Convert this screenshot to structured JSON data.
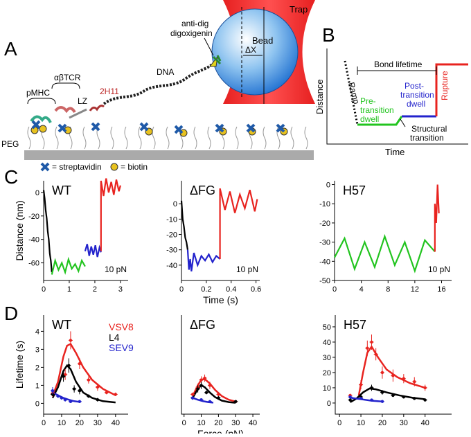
{
  "panel_labels": [
    "A",
    "B",
    "C",
    "D"
  ],
  "diagram_a": {
    "trap": "Trap",
    "anti_dig": "anti-dig",
    "digoxigenin": "digoxigenin",
    "bead": "Bead",
    "delta_x": "ΔX",
    "dna": "DNA",
    "antibody": "2H11",
    "lz": "LZ",
    "tcr": "αβTCR",
    "pmhc": "pMHC",
    "peg": "PEG",
    "legend": [
      "= streptavidin",
      "= biotin"
    ]
  },
  "schematic_b": {
    "bond_lifetime": "Bond lifetime",
    "ramp": "Ramp",
    "pre_transition": [
      "Pre-",
      "transition",
      "dwell"
    ],
    "post_transition": [
      "Post-",
      "transition",
      "dwell"
    ],
    "rupture": "Rupture",
    "structural_transition": [
      "Structural",
      "transition"
    ],
    "y_label": "Distance",
    "x_label": "Time"
  },
  "chart_data": [
    {
      "type": "line",
      "title": "WT",
      "y_label": "Distance (nm)",
      "annotation": "10 pN",
      "xlim": [
        0,
        3.3
      ],
      "ylim": [
        -75,
        10
      ],
      "xticks": [
        0,
        1,
        2,
        3
      ],
      "yticks": [
        0,
        -20,
        -40,
        -60
      ],
      "series": [
        {
          "color": "#000000",
          "x": [
            0,
            0.04,
            0.08,
            0.12,
            0.16,
            0.2,
            0.24,
            0.28,
            0.32
          ],
          "values": [
            2,
            -5,
            -15,
            -22,
            -33,
            -40,
            -52,
            -58,
            -68
          ]
        },
        {
          "color": "#22c41f",
          "x": [
            0.32,
            0.45,
            0.58,
            0.71,
            0.84,
            0.97,
            1.1,
            1.23,
            1.36,
            1.49,
            1.62
          ],
          "values": [
            -70,
            -58,
            -66,
            -60,
            -68,
            -57,
            -65,
            -61,
            -67,
            -58,
            -63
          ]
        },
        {
          "color": "#2323cc",
          "x": [
            1.62,
            1.7,
            1.78,
            1.86,
            1.94,
            2.02,
            2.1,
            2.18,
            2.24
          ],
          "values": [
            -50,
            -44,
            -54,
            -46,
            -53,
            -45,
            -55,
            -47,
            -51
          ]
        },
        {
          "color": "#e8231f",
          "x": [
            2.24,
            2.24,
            2.34,
            2.44,
            2.54,
            2.64,
            2.74,
            2.84,
            2.94,
            3.0
          ],
          "values": [
            -50,
            10,
            -3,
            12,
            0,
            9,
            -2,
            11,
            1,
            6
          ]
        }
      ]
    },
    {
      "type": "line",
      "title": "ΔFG",
      "x_label": "Time (s)",
      "annotation": "10 pN",
      "xlim": [
        0,
        0.63
      ],
      "ylim": [
        -50,
        15
      ],
      "xticks": [
        0,
        0.2,
        0.4,
        0.6
      ],
      "yticks": [
        0,
        -10,
        -20,
        -30,
        -40
      ],
      "series": [
        {
          "color": "#000000",
          "x": [
            0,
            0.01,
            0.02,
            0.03,
            0.04,
            0.05
          ],
          "values": [
            2,
            -10,
            -15,
            -22,
            -25,
            -30
          ]
        },
        {
          "color": "#2323cc",
          "x": [
            0.05,
            0.06,
            0.07,
            0.08,
            0.1,
            0.13,
            0.16,
            0.19,
            0.22,
            0.25,
            0.28,
            0.31
          ],
          "values": [
            -30,
            -43,
            -36,
            -44,
            -32,
            -40,
            -34,
            -37,
            -33,
            -38,
            -34,
            -36
          ]
        },
        {
          "color": "#e8231f",
          "x": [
            0.31,
            0.31,
            0.35,
            0.39,
            0.43,
            0.47,
            0.51,
            0.55,
            0.59,
            0.61
          ],
          "values": [
            -36,
            10,
            -4,
            8,
            -6,
            6,
            -3,
            9,
            -5,
            3
          ]
        }
      ]
    },
    {
      "type": "line",
      "title": "H57",
      "annotation": "10 pN",
      "xlim": [
        0,
        17.5
      ],
      "ylim": [
        -50,
        2
      ],
      "xticks": [
        0,
        4,
        8,
        12,
        16
      ],
      "yticks": [
        0,
        -10,
        -20,
        -30,
        -40,
        -50
      ],
      "series": [
        {
          "color": "#22c41f",
          "x": [
            0,
            1.5,
            3,
            4.5,
            6,
            7.5,
            9,
            10.5,
            12,
            13.5,
            15
          ],
          "values": [
            -38,
            -28,
            -44,
            -30,
            -43,
            -27,
            -42,
            -30,
            -45,
            -29,
            -35
          ]
        },
        {
          "color": "#e8231f",
          "x": [
            15,
            15,
            15.2,
            15.4,
            15.6
          ],
          "values": [
            -35,
            -10,
            -20,
            0,
            -15
          ]
        }
      ]
    },
    {
      "type": "scatter",
      "title": "WT",
      "y_label": "Lifetime (s)",
      "xlim": [
        0,
        47
      ],
      "ylim": [
        -0.6,
        4.9
      ],
      "xticks": [
        0,
        10,
        20,
        30,
        40
      ],
      "yticks": [
        0,
        1,
        2,
        3,
        4
      ],
      "series": [
        {
          "name": "VSV8",
          "color": "#e8231f",
          "x": [
            5,
            12,
            15,
            20,
            25,
            30,
            35,
            40
          ],
          "values": [
            0.55,
            1.6,
            3.5,
            2.2,
            1.3,
            0.9,
            0.6,
            0.5
          ],
          "errors": [
            0.2,
            0.3,
            0.5,
            0.3,
            0.2,
            0.2,
            0.1,
            0.1
          ]
        },
        {
          "name": "L4",
          "color": "#000000",
          "x": [
            5,
            11,
            14,
            17,
            20,
            25,
            30
          ],
          "values": [
            0.5,
            1.5,
            2.1,
            0.8,
            0.7,
            0.4,
            0.2
          ],
          "errors": [
            0.1,
            0.3,
            0.4,
            0.2,
            0.2,
            0.1,
            0.1
          ]
        },
        {
          "name": "SEV9",
          "color": "#2323cc",
          "x": [
            5,
            8,
            10,
            12,
            15,
            20
          ],
          "values": [
            0.7,
            0.4,
            0.3,
            0.2,
            0.1,
            0.1
          ],
          "errors": [
            0.2,
            0.1,
            0.1,
            0.1,
            0.05,
            0.05
          ]
        }
      ],
      "fits": [
        {
          "color": "#e8231f",
          "x": [
            5,
            8,
            11,
            13,
            15,
            18,
            22,
            27,
            33,
            40
          ],
          "values": [
            0.4,
            1.2,
            2.6,
            3.2,
            3.3,
            2.8,
            2.0,
            1.3,
            0.8,
            0.45
          ]
        },
        {
          "color": "#000000",
          "x": [
            5,
            8,
            11,
            13,
            15,
            18,
            22,
            27,
            33,
            40
          ],
          "values": [
            0.3,
            0.9,
            1.8,
            2.1,
            1.9,
            1.2,
            0.6,
            0.3,
            0.12,
            0.05
          ]
        },
        {
          "color": "#2323cc",
          "x": [
            5,
            8,
            11,
            14,
            17,
            20
          ],
          "values": [
            0.6,
            0.45,
            0.3,
            0.2,
            0.12,
            0.08
          ]
        }
      ]
    },
    {
      "type": "scatter",
      "title": "ΔFG",
      "x_label": "Force (pN)",
      "xlim": [
        -1.5,
        44
      ],
      "ylim": [
        -0.6,
        4.9
      ],
      "xticks": [
        0,
        10,
        20,
        30,
        40
      ],
      "series": [
        {
          "color": "#e8231f",
          "x": [
            5,
            8,
            10,
            12,
            15,
            20,
            30
          ],
          "values": [
            0.5,
            0.9,
            1.3,
            1.4,
            1.0,
            0.5,
            0.1
          ],
          "errors": [
            0.1,
            0.2,
            0.2,
            0.2,
            0.2,
            0.1,
            0.05
          ]
        },
        {
          "color": "#000000",
          "x": [
            5,
            8,
            10,
            13,
            20,
            30
          ],
          "values": [
            0.3,
            0.8,
            1.0,
            0.6,
            0.3,
            0.1
          ],
          "errors": [
            0.1,
            0.2,
            0.2,
            0.1,
            0.1,
            0.05
          ]
        },
        {
          "color": "#2323cc",
          "x": [
            5,
            10,
            15
          ],
          "values": [
            0.3,
            0.2,
            0.1
          ],
          "errors": [
            0.1,
            0.05,
            0.05
          ]
        }
      ],
      "fits": [
        {
          "color": "#e8231f",
          "x": [
            5,
            8,
            10,
            12,
            15,
            18,
            22,
            26,
            30
          ],
          "values": [
            0.4,
            1.0,
            1.3,
            1.35,
            1.1,
            0.75,
            0.4,
            0.2,
            0.1
          ]
        },
        {
          "color": "#000000",
          "x": [
            5,
            8,
            10,
            12,
            15,
            18,
            22,
            26,
            30
          ],
          "values": [
            0.3,
            0.8,
            1.0,
            0.9,
            0.6,
            0.35,
            0.15,
            0.07,
            0.03
          ]
        },
        {
          "color": "#2323cc",
          "x": [
            5,
            8,
            11,
            14,
            17
          ],
          "values": [
            0.3,
            0.2,
            0.12,
            0.07,
            0.04
          ]
        }
      ]
    },
    {
      "type": "scatter",
      "title": "H57",
      "xlim": [
        -2,
        52.4
      ],
      "ylim": [
        -7.3,
        57.7
      ],
      "xticks": [
        0,
        10,
        20,
        30,
        40
      ],
      "yticks": [
        0,
        10,
        20,
        30,
        40,
        50
      ],
      "series": [
        {
          "color": "#e8231f",
          "x": [
            5,
            10,
            13,
            15,
            17,
            20,
            25,
            30,
            35,
            40
          ],
          "values": [
            5,
            12,
            36,
            40,
            32,
            20,
            18,
            16,
            14,
            10
          ],
          "errors": [
            1,
            3,
            5,
            5,
            4,
            4,
            4,
            3,
            3,
            2
          ]
        },
        {
          "color": "#000000",
          "x": [
            5,
            10,
            15,
            20,
            25,
            30,
            35,
            40
          ],
          "values": [
            2,
            4,
            10,
            7,
            5,
            4,
            3,
            2
          ],
          "errors": [
            0.5,
            1,
            2,
            1.5,
            1,
            1,
            0.5,
            0.5
          ]
        },
        {
          "color": "#2323cc",
          "x": [
            5,
            10,
            15,
            20
          ],
          "values": [
            4,
            3,
            2,
            1
          ],
          "errors": [
            1,
            0.5,
            0.5,
            0.3
          ]
        }
      ],
      "fits": [
        {
          "color": "#e8231f",
          "x": [
            9,
            11,
            13,
            15,
            18,
            22,
            27,
            33,
            40
          ],
          "values": [
            5,
            20,
            33,
            37,
            30,
            22,
            17,
            13,
            10
          ]
        },
        {
          "color": "#000000",
          "x": [
            5,
            8,
            11,
            14,
            17,
            22,
            28,
            34,
            40
          ],
          "values": [
            0.5,
            3,
            7,
            9.5,
            9,
            7,
            5,
            3.5,
            2.5
          ]
        },
        {
          "color": "#2323cc",
          "x": [
            5,
            10,
            15,
            20
          ],
          "values": [
            3.5,
            2.5,
            1.5,
            1
          ]
        }
      ]
    }
  ]
}
